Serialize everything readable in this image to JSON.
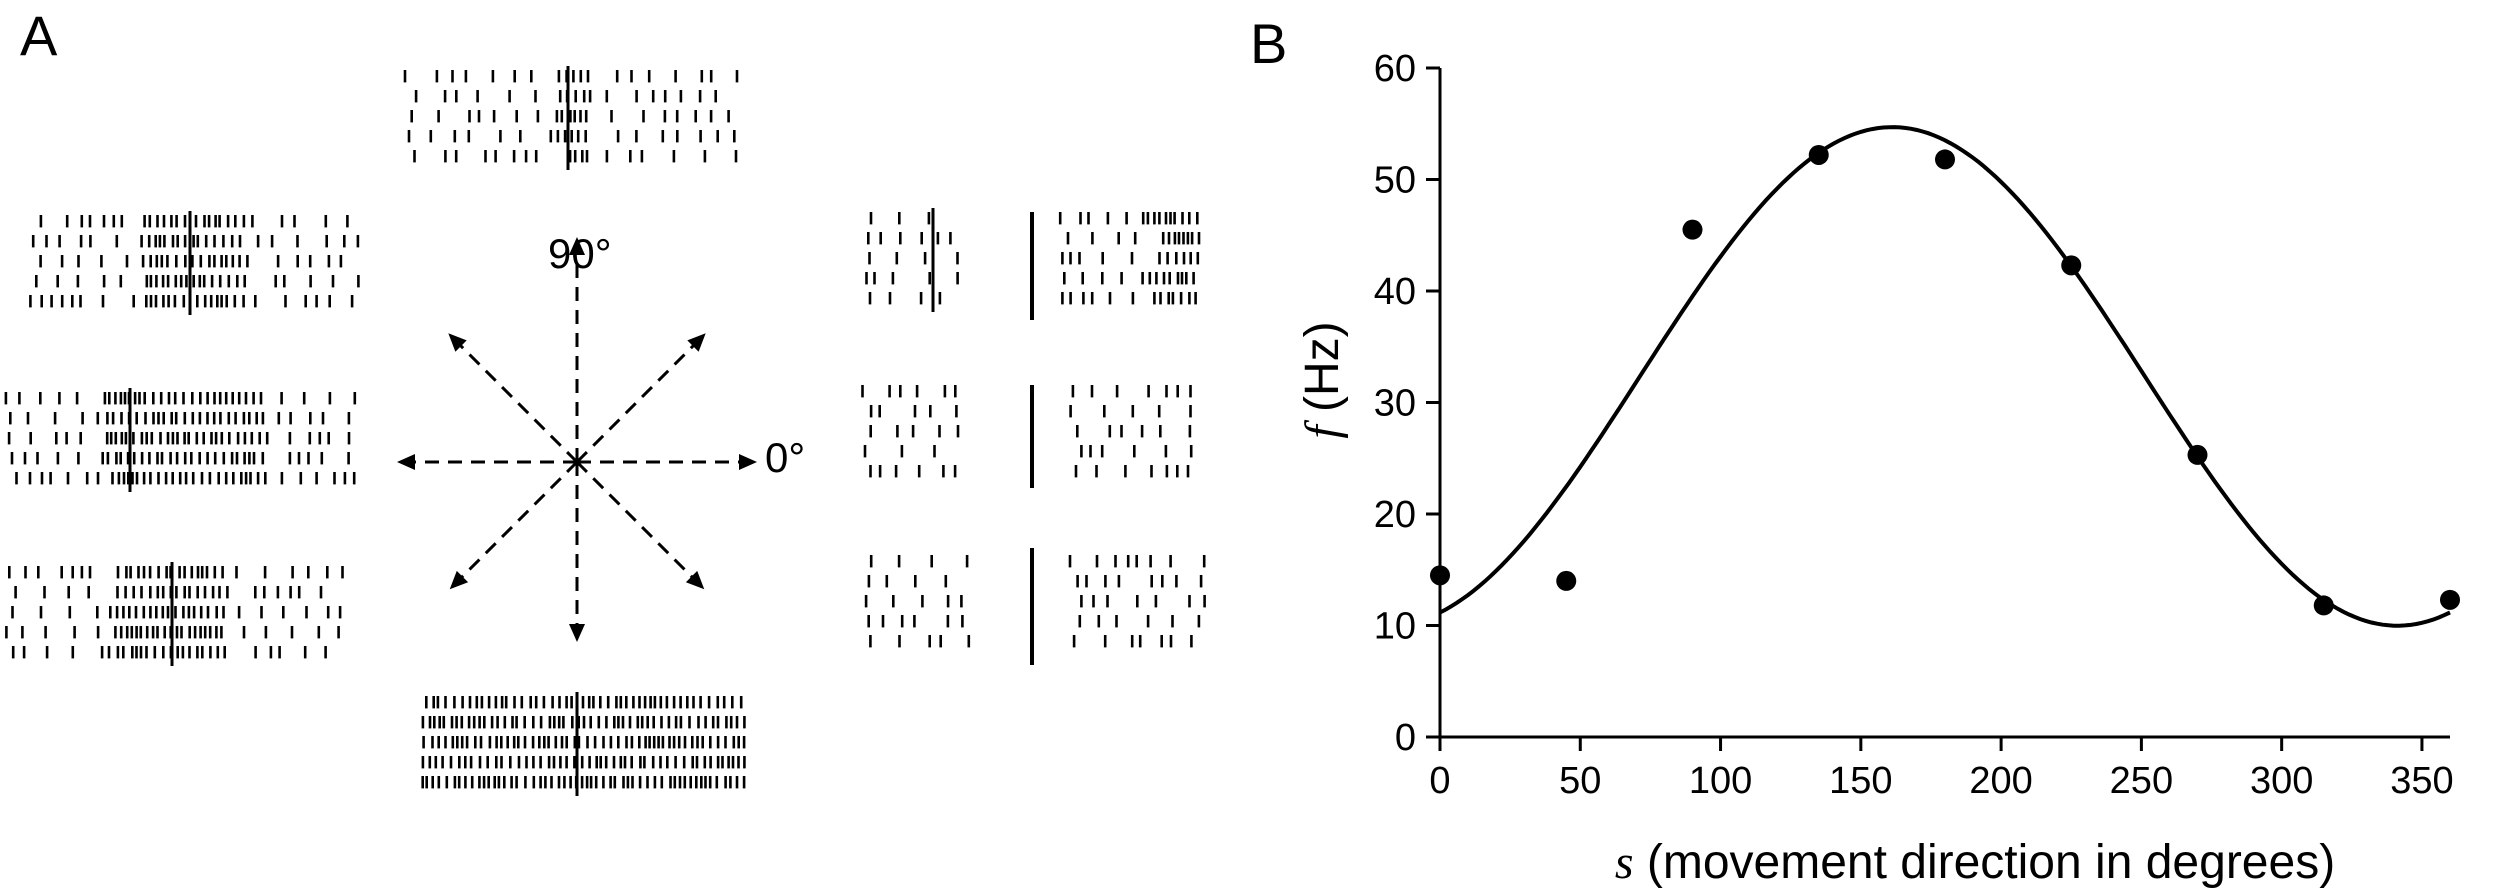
{
  "panels": {
    "a": {
      "label": "A"
    },
    "b": {
      "label": "B"
    }
  },
  "raster": {
    "direction_labels": {
      "up": "90°",
      "right": "0°"
    }
  },
  "chart_data": {
    "type": "scatter",
    "xlabel_var": "s",
    "xlabel_text": "(movement direction in degrees)",
    "ylabel_var": "f",
    "ylabel_text": "(Hz)",
    "xlim": [
      0,
      360
    ],
    "ylim": [
      0,
      60
    ],
    "xticks": [
      0,
      50,
      100,
      150,
      200,
      250,
      300,
      350
    ],
    "yticks": [
      0,
      10,
      20,
      30,
      40,
      50,
      60
    ],
    "grid": false,
    "series": [
      {
        "kind": "points",
        "x": [
          0,
          45,
          90,
          135,
          180,
          225,
          270,
          315,
          360
        ],
        "y": [
          14.5,
          14,
          45.5,
          52.2,
          51.8,
          42.3,
          25.3,
          11.8,
          12.3
        ]
      },
      {
        "kind": "fitted-curve",
        "model": "cosine",
        "baseline": 32.34,
        "amplitude": 22.36,
        "preferred_direction": 161.25
      }
    ],
    "colors": {
      "ink": "#000000",
      "background": "#ffffff"
    }
  }
}
